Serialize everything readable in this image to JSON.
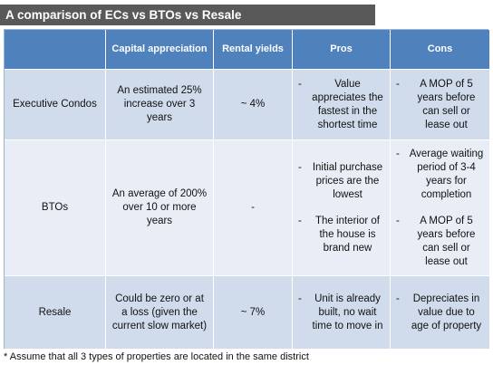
{
  "title": "A comparison of ECs vs BTOs vs Resale",
  "columns": [
    "",
    "Capital appreciation",
    "Rental yields",
    "Pros",
    "Cons"
  ],
  "rows": [
    {
      "label": "Executive Condos",
      "capital": "An estimated 25% increase over 3 years",
      "rental": "~ 4%",
      "pros": [
        "Value appreciates the fastest in the shortest time"
      ],
      "cons": [
        "A MOP of 5 years before can sell or lease out"
      ]
    },
    {
      "label": "BTOs",
      "capital": "An average of 200% over 10 or more years",
      "rental": "-",
      "pros": [
        "Initial purchase prices are the lowest",
        "The interior of the house is brand new"
      ],
      "cons": [
        "Average waiting period of 3-4 years for completion",
        "A MOP of 5 years before can sell or lease out"
      ]
    },
    {
      "label": "Resale",
      "capital": "Could be zero or at a loss (given the current slow market)",
      "rental": "~ 7%",
      "pros": [
        "Unit is already built, no wait time to move in"
      ],
      "cons": [
        "Depreciates in value due to age of property"
      ]
    }
  ],
  "bullet": "-",
  "footnote": "* Assume that all 3 types of properties are located in the same district"
}
